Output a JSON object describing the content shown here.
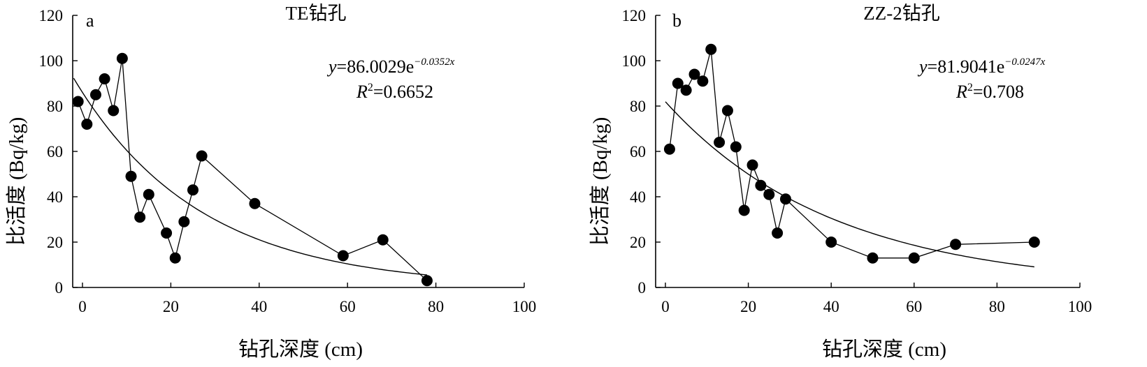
{
  "chart_data": [
    {
      "type": "scatter",
      "panel_label": "a",
      "title": "TE钻孔",
      "xlabel": "钻孔深度 (cm)",
      "ylabel": "比活度 (Bq/kg)",
      "xlim": [
        0,
        100
      ],
      "ylim": [
        0,
        120
      ],
      "xticks": [
        "0",
        "20",
        "40",
        "60",
        "80",
        "100"
      ],
      "yticks": [
        "0",
        "20",
        "40",
        "60",
        "80",
        "100",
        "120"
      ],
      "grid": false,
      "series": [
        {
          "x": [
            -1,
            1,
            3,
            5,
            7,
            9,
            11,
            13,
            15,
            19,
            21,
            23,
            25,
            27,
            39,
            59,
            68,
            78
          ],
          "y": [
            82,
            72,
            85,
            92,
            78,
            101,
            49,
            31,
            41,
            24,
            13,
            29,
            43,
            58,
            37,
            14,
            21,
            3
          ]
        }
      ],
      "fit": {
        "a": 86.0029,
        "b": -0.0352,
        "x_range": [
          -2,
          78
        ],
        "equation_prefix": "y",
        "equation_mid": "=86.0029e",
        "equation_exp": "−0.0352x",
        "r2_prefix": "R",
        "r2_sup": "2",
        "r2_value": "=0.6652"
      }
    },
    {
      "type": "scatter",
      "panel_label": "b",
      "title": "ZZ-2钻孔",
      "xlabel": "钻孔深度 (cm)",
      "ylabel": "比活度 (Bq/kg)",
      "xlim": [
        0,
        100
      ],
      "ylim": [
        0,
        120
      ],
      "xticks": [
        "0",
        "20",
        "40",
        "60",
        "80",
        "100"
      ],
      "yticks": [
        "0",
        "20",
        "40",
        "60",
        "80",
        "100",
        "120"
      ],
      "grid": false,
      "series": [
        {
          "x": [
            1,
            3,
            5,
            7,
            9,
            11,
            13,
            15,
            17,
            19,
            21,
            23,
            25,
            27,
            29,
            40,
            50,
            60,
            70,
            89
          ],
          "y": [
            61,
            90,
            87,
            94,
            91,
            105,
            64,
            78,
            62,
            34,
            54,
            45,
            41,
            24,
            39,
            20,
            13,
            13,
            19,
            20
          ]
        }
      ],
      "fit": {
        "a": 81.9041,
        "b": -0.0247,
        "x_range": [
          0,
          89
        ],
        "equation_prefix": "y",
        "equation_mid": "=81.9041e",
        "equation_exp": "−0.0247x",
        "r2_prefix": "R",
        "r2_sup": "2",
        "r2_value": "=0.708"
      }
    }
  ]
}
